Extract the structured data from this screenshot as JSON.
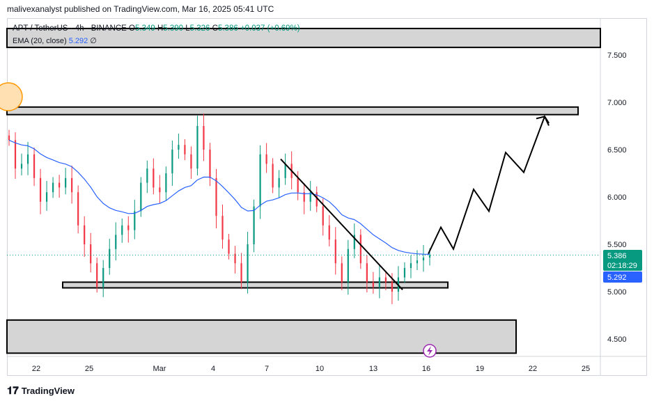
{
  "header": {
    "text": "malivexanalyst published on TradingView.com, Mar 16, 2025 05:41 UTC"
  },
  "legend": {
    "symbol": "APT / TetherUS · 4h · BINANCE",
    "open_label": "O",
    "open": "5.349",
    "high_label": "H",
    "high": "5.390",
    "low_label": "L",
    "low": "5.326",
    "close_label": "C",
    "close": "5.386",
    "change": "+0.037 (+0.69%)"
  },
  "indicator": {
    "name": "EMA (20, close)",
    "value": "5.292",
    "extra": "∅"
  },
  "badges": {
    "price": "5.386",
    "countdown": "02:18:29",
    "ema": "5.292"
  },
  "footer": {
    "brand": "TradingView"
  },
  "colors": {
    "up": "#089981",
    "down": "#f23645",
    "ema": "#2962ff",
    "price_badge": "#089981",
    "ema_badge": "#2962ff"
  },
  "chart_data": {
    "type": "candlestick",
    "symbol": "APT / TetherUS",
    "interval": "4h",
    "exchange": "BINANCE",
    "x_ticks": [
      "22",
      "25",
      "Mar",
      "4",
      "7",
      "10",
      "13",
      "16",
      "19",
      "22",
      "25"
    ],
    "y_ticks": [
      "4.500",
      "5.000",
      "5.500",
      "6.000",
      "6.500",
      "7.000",
      "7.500"
    ],
    "ylim": [
      4.35,
      7.85
    ],
    "approx_closes": [
      6.6,
      6.3,
      6.35,
      6.45,
      6.2,
      5.95,
      6.05,
      6.15,
      6.1,
      6.2,
      6.05,
      5.7,
      5.5,
      5.3,
      5.05,
      5.25,
      5.45,
      5.6,
      5.7,
      5.65,
      5.85,
      6.15,
      6.3,
      6.1,
      6.05,
      6.25,
      6.5,
      6.55,
      6.45,
      6.3,
      6.75,
      6.5,
      6.2,
      5.8,
      5.55,
      5.4,
      5.3,
      5.1,
      5.5,
      5.9,
      6.45,
      6.35,
      6.1,
      6.2,
      6.35,
      6.2,
      6.05,
      5.95,
      6.05,
      5.9,
      5.7,
      5.55,
      5.3,
      5.1,
      5.45,
      5.6,
      5.3,
      5.1,
      5.05,
      5.15,
      5.1,
      5.0,
      5.15,
      5.25,
      5.3,
      5.33,
      5.36,
      5.386
    ],
    "ema_20_last": 5.292,
    "zones": [
      {
        "from": 6.87,
        "to": 6.95,
        "label": ""
      },
      {
        "from": 5.04,
        "to": 5.1,
        "label": ""
      },
      {
        "from": 4.35,
        "to": 4.7,
        "label": ""
      },
      {
        "from": 7.58,
        "to": 7.78,
        "label": ""
      }
    ],
    "trendline": {
      "from": 6.4,
      "to": 5.02
    },
    "projection": [
      5.4,
      5.68,
      5.45,
      6.08,
      5.85,
      6.47,
      6.26,
      6.85,
      6.78
    ]
  }
}
